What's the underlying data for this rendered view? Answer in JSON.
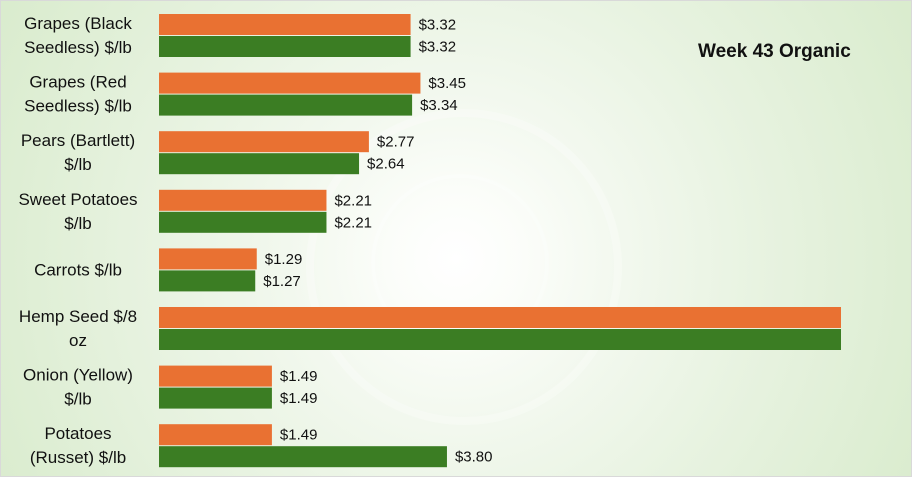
{
  "chart_data": {
    "type": "bar",
    "orientation": "horizontal",
    "title": "Week 43 Organic",
    "categories": [
      [
        "Grapes (Black",
        "Seedless) $/lb"
      ],
      [
        "Grapes (Red",
        "Seedless) $/lb"
      ],
      [
        "Pears (Bartlett)",
        "$/lb"
      ],
      [
        "Sweet Potatoes",
        "$/lb"
      ],
      [
        "Carrots $/lb"
      ],
      [
        "Hemp Seed $/8",
        "oz"
      ],
      [
        "Onion (Yellow)",
        "$/lb"
      ],
      [
        "Potatoes",
        "(Russet) $/lb"
      ]
    ],
    "series": [
      {
        "color": "#e97132",
        "values": [
          3.32,
          3.45,
          2.77,
          2.21,
          1.29,
          9.0,
          1.49,
          1.49
        ],
        "labels": [
          "$3.32",
          "$3.45",
          "$2.77",
          "$2.21",
          "$1.29",
          "",
          "$1.49",
          "$1.49"
        ]
      },
      {
        "color": "#3b7d23",
        "values": [
          3.32,
          3.34,
          2.64,
          2.21,
          1.27,
          9.0,
          1.49,
          3.8
        ],
        "labels": [
          "$3.32",
          "$3.34",
          "$2.64",
          "$2.21",
          "$1.27",
          "",
          "$1.49",
          "$3.80"
        ]
      }
    ],
    "xlim": [
      0,
      9.0
    ],
    "legend": "none",
    "grid": false
  }
}
